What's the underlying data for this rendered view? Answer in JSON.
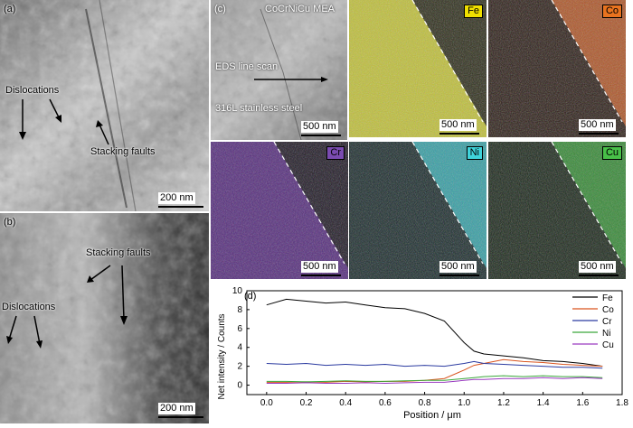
{
  "panel_a": {
    "label": "(a)",
    "annotations": [
      "Dislocations",
      "Stacking faults"
    ],
    "scale_bar": "200 nm"
  },
  "panel_b": {
    "label": "(b)",
    "annotations": [
      "Stacking faults",
      "Dislocations"
    ],
    "scale_bar": "200 nm"
  },
  "panel_c": {
    "label": "(c)",
    "title": "CoCrNiCu MEA",
    "line_scan": "EDS line scan",
    "steel": "316L stainless steel",
    "scale_bar": "500 nm",
    "maps": [
      {
        "element": "Fe",
        "color": "#d9d93a",
        "tag_bg": "#f0e000"
      },
      {
        "element": "Co",
        "color": "#d86428",
        "tag_bg": "#e8731f"
      },
      {
        "element": "Cr",
        "color": "#5a2a8a",
        "tag_bg": "#7a4bb0"
      },
      {
        "element": "Ni",
        "color": "#39c4cc",
        "tag_bg": "#3fd3da"
      },
      {
        "element": "Cu",
        "color": "#3aa83a",
        "tag_bg": "#48c048"
      }
    ]
  },
  "panel_d": {
    "label": "(d)"
  },
  "chart_data": {
    "type": "line",
    "xlabel": "Position / μm",
    "ylabel": "Net intensity / Counts",
    "xlim": [
      -0.1,
      1.8
    ],
    "ylim": [
      -1,
      10
    ],
    "xticks": [
      "0.0",
      "0.2",
      "0.4",
      "0.6",
      "0.8",
      "1.0",
      "1.2",
      "1.4",
      "1.6",
      "1.8"
    ],
    "yticks": [
      "0",
      "2",
      "4",
      "6",
      "8",
      "10"
    ],
    "legend_position": "top-right",
    "x": [
      0.0,
      0.1,
      0.2,
      0.3,
      0.4,
      0.5,
      0.6,
      0.7,
      0.8,
      0.9,
      1.0,
      1.05,
      1.1,
      1.2,
      1.3,
      1.4,
      1.5,
      1.6,
      1.7
    ],
    "series": [
      {
        "name": "Fe",
        "color": "#000000",
        "values": [
          8.5,
          9.1,
          8.9,
          8.7,
          8.8,
          8.5,
          8.2,
          8.1,
          7.6,
          6.8,
          4.5,
          3.6,
          3.3,
          3.1,
          2.9,
          2.6,
          2.5,
          2.3,
          2.0
        ]
      },
      {
        "name": "Co",
        "color": "#d9541e",
        "values": [
          0.3,
          0.3,
          0.35,
          0.3,
          0.4,
          0.35,
          0.4,
          0.4,
          0.5,
          0.7,
          1.6,
          2.1,
          2.3,
          2.7,
          2.5,
          2.4,
          2.2,
          2.1,
          2.0
        ]
      },
      {
        "name": "Cr",
        "color": "#2a3aa0",
        "values": [
          2.3,
          2.2,
          2.3,
          2.1,
          2.2,
          2.1,
          2.2,
          2.0,
          2.1,
          2.0,
          2.3,
          2.5,
          2.3,
          2.2,
          2.1,
          2.0,
          1.9,
          1.9,
          1.8
        ]
      },
      {
        "name": "Ni",
        "color": "#3aa83a",
        "values": [
          0.4,
          0.4,
          0.35,
          0.4,
          0.45,
          0.4,
          0.4,
          0.45,
          0.5,
          0.5,
          0.7,
          0.8,
          0.9,
          1.0,
          0.9,
          1.0,
          0.9,
          0.9,
          0.8
        ]
      },
      {
        "name": "Cu",
        "color": "#9a3ac0",
        "values": [
          0.2,
          0.2,
          0.25,
          0.2,
          0.2,
          0.25,
          0.2,
          0.25,
          0.3,
          0.3,
          0.5,
          0.6,
          0.6,
          0.7,
          0.7,
          0.8,
          0.7,
          0.8,
          0.7
        ]
      }
    ]
  }
}
